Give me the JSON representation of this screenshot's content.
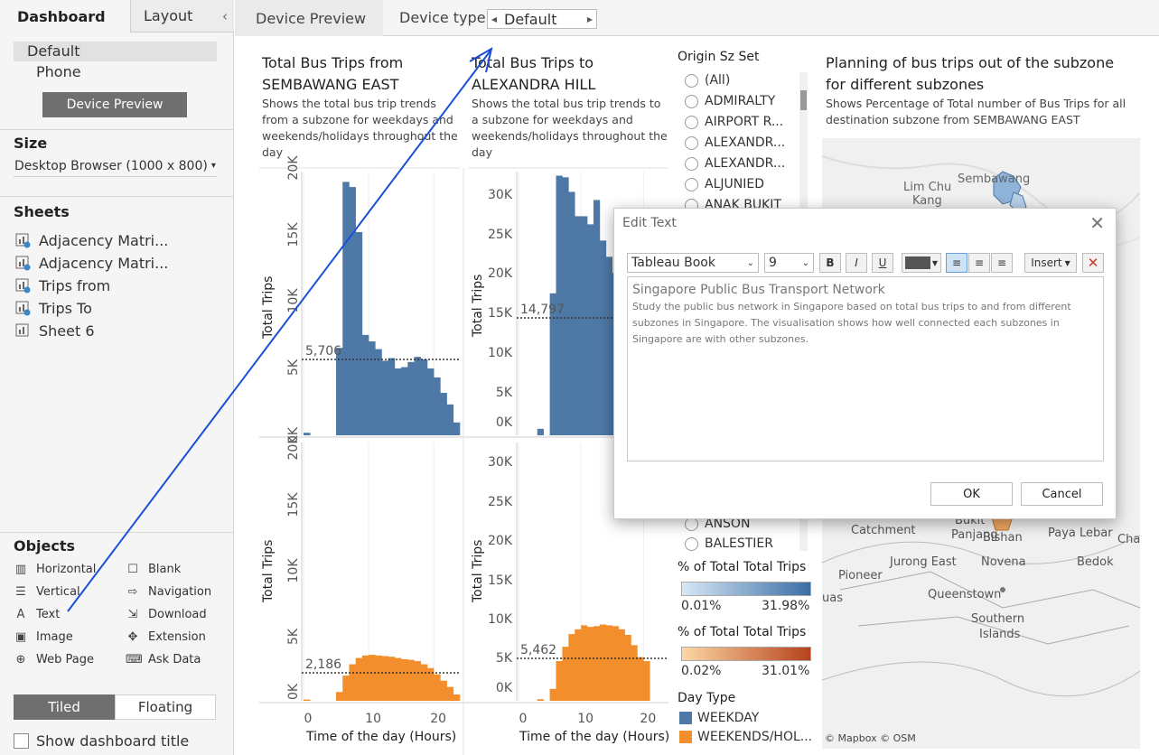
{
  "left_pane": {
    "tabs": [
      "Dashboard",
      "Layout"
    ],
    "collapse_glyph": "‹",
    "device": {
      "items": [
        "Default",
        "Phone"
      ],
      "preview_button": "Device Preview"
    },
    "size": {
      "title": "Size",
      "value": "Desktop Browser (1000 x 800)"
    },
    "sheets": {
      "title": "Sheets",
      "items": [
        "Adjacency Matri...",
        "Adjacency Matri...",
        "Trips from",
        "Trips To",
        "Sheet 6"
      ]
    },
    "objects": {
      "title": "Objects",
      "items": [
        {
          "label": "Horizontal",
          "icon": "horizontal-icon"
        },
        {
          "label": "Blank",
          "icon": "blank-icon"
        },
        {
          "label": "Vertical",
          "icon": "vertical-icon"
        },
        {
          "label": "Navigation",
          "icon": "navigation-icon"
        },
        {
          "label": "Text",
          "icon": "text-icon"
        },
        {
          "label": "Download",
          "icon": "download-icon"
        },
        {
          "label": "Image",
          "icon": "image-icon"
        },
        {
          "label": "Extension",
          "icon": "extension-icon"
        },
        {
          "label": "Web Page",
          "icon": "web-page-icon"
        },
        {
          "label": "Ask Data",
          "icon": "ask-data-icon"
        }
      ],
      "tiled": "Tiled",
      "floating": "Floating"
    },
    "show_title": "Show dashboard title"
  },
  "topbar": {
    "preview_tab": "Device Preview",
    "device_type_label": "Device type",
    "device_type_value": "Default"
  },
  "charts": {
    "left": {
      "title_1": "Total Bus Trips from",
      "title_2": "SEMBAWANG EAST",
      "subtitle_lines": [
        "Shows the total bus trip trends",
        "from a subzone for weekdays and",
        "weekends/holidays throughout the",
        "day"
      ]
    },
    "right": {
      "title_1": "Total Bus Trips to",
      "title_2": "ALEXANDRA HILL",
      "subtitle_lines": [
        "Shows the total bus trip trends to",
        "a subzone for weekdays and",
        "weekends/holidays throughout the",
        "day"
      ]
    },
    "ylabel": "Total Trips",
    "xlabel": "Time of the day (Hours)"
  },
  "chart_data": [
    {
      "type": "bar",
      "title": "Total Bus Trips from SEMBAWANG EAST — WEEKDAY",
      "xlabel": "Time of the day (Hours)",
      "ylabel": "Total Trips",
      "x": [
        0,
        1,
        2,
        3,
        4,
        5,
        6,
        7,
        8,
        9,
        10,
        11,
        12,
        13,
        14,
        15,
        16,
        17,
        18,
        19,
        20,
        21,
        22,
        23
      ],
      "values": [
        200,
        0,
        0,
        0,
        0,
        6800,
        19700,
        19300,
        15800,
        7800,
        7300,
        6700,
        5800,
        6000,
        5200,
        5300,
        5700,
        6100,
        5900,
        5200,
        4500,
        3300,
        2400,
        1000
      ],
      "ylim": [
        0,
        20500
      ],
      "yticks": [
        "0K",
        "5K",
        "10K",
        "15K",
        "20K"
      ],
      "xticks": [
        "0",
        "10",
        "20"
      ],
      "reference_line": "5,706",
      "color": "#4e79a7"
    },
    {
      "type": "bar",
      "title": "Total Bus Trips to ALEXANDRA HILL — WEEKDAY",
      "xlabel": "Time of the day (Hours)",
      "ylabel": "Total Trips",
      "x": [
        0,
        1,
        2,
        3,
        4,
        5,
        6,
        7,
        8,
        9,
        10,
        11,
        12,
        13,
        14,
        15,
        16,
        17,
        18,
        19,
        20
      ],
      "values": [
        0,
        0,
        0,
        800,
        0,
        17500,
        32000,
        31800,
        30000,
        27000,
        27000,
        26000,
        29000,
        24000,
        22000,
        20000,
        18000,
        16000,
        14000,
        10000,
        15000
      ],
      "ylim": [
        0,
        32500
      ],
      "yticks": [
        "0K",
        "5K",
        "10K",
        "15K",
        "20K",
        "25K",
        "30K"
      ],
      "xticks": [
        "0",
        "10",
        "20"
      ],
      "reference_line": "14,797",
      "color": "#4e79a7"
    },
    {
      "type": "bar",
      "title": "Total Bus Trips from SEMBAWANG EAST — WEEKENDS/HOLIDAYS",
      "xlabel": "Time of the day (Hours)",
      "ylabel": "Total Trips",
      "x": [
        0,
        1,
        2,
        3,
        4,
        5,
        6,
        7,
        8,
        9,
        10,
        11,
        12,
        13,
        14,
        15,
        16,
        17,
        18,
        19,
        20,
        21,
        22,
        23
      ],
      "values": [
        100,
        0,
        0,
        0,
        0,
        700,
        2000,
        2900,
        3400,
        3600,
        3650,
        3600,
        3550,
        3500,
        3400,
        3300,
        3250,
        3150,
        2900,
        2600,
        2100,
        1600,
        1100,
        500
      ],
      "ylim": [
        0,
        20500
      ],
      "yticks": [
        "0K",
        "5K",
        "10K",
        "15K",
        "20K"
      ],
      "xticks": [
        "0",
        "10",
        "20"
      ],
      "reference_line": "2,186",
      "color": "#f28e2b"
    },
    {
      "type": "bar",
      "title": "Total Bus Trips to ALEXANDRA HILL — WEEKENDS/HOLIDAYS",
      "xlabel": "Time of the day (Hours)",
      "ylabel": "Total Trips",
      "x": [
        0,
        1,
        2,
        3,
        4,
        5,
        6,
        7,
        8,
        9,
        10,
        11,
        12,
        13,
        14,
        15,
        16,
        17,
        18,
        19,
        20
      ],
      "values": [
        0,
        0,
        0,
        200,
        0,
        1500,
        5000,
        6800,
        8400,
        9000,
        9500,
        9300,
        9400,
        9600,
        9500,
        9400,
        9000,
        8300,
        7000,
        5500,
        5000
      ],
      "ylim": [
        0,
        32500
      ],
      "yticks": [
        "0K",
        "5K",
        "10K",
        "15K",
        "20K",
        "25K",
        "30K"
      ],
      "xticks": [
        "0",
        "10",
        "20"
      ],
      "reference_line": "5,462",
      "color": "#f28e2b"
    }
  ],
  "legend": {
    "origin_title": "Origin Sz Set",
    "origin_items_top": [
      "(All)",
      "ADMIRALTY",
      "AIRPORT R...",
      "ALEXANDR...",
      "ALEXANDR...",
      "ALJUNIED",
      "ANAK BUKIT"
    ],
    "origin_items_bottom": [
      "ANSON",
      "BALESTIER"
    ],
    "pct_title_1": "% of Total Total Trips",
    "pct_min_1": "0.01%",
    "pct_max_1": "31.98%",
    "pct_title_2": "% of Total Total Trips",
    "pct_min_2": "0.02%",
    "pct_max_2": "31.01%",
    "day_type_title": "Day Type",
    "day_types": [
      {
        "label": "WEEKDAY",
        "color": "#4e79a7"
      },
      {
        "label": "WEEKENDS/HOL...",
        "color": "#f28e2b"
      }
    ]
  },
  "map": {
    "title_1": "Planning of bus trips out of the subzone",
    "title_2": "for different subzones",
    "subtitle_1": "Shows Percentage of Total number of  Bus Trips for all",
    "subtitle_2": "destination subzone from SEMBAWANG EAST",
    "labels_top": [
      "Sembawang",
      "Lim Chu",
      "Kang"
    ],
    "labels_bottom": [
      "Catchment",
      "Bukit",
      "Panjang",
      "Bishan",
      "Paya Lebar",
      "Cha",
      "Pioneer",
      "Jurong East",
      "Novena",
      "Bedok",
      "uas",
      "Queenstown",
      "Southern",
      "Islands"
    ],
    "attribution": "© Mapbox © OSM"
  },
  "dialog": {
    "title": "Edit Text",
    "font": "Tableau Book",
    "size": "9",
    "bold": "B",
    "italic": "I",
    "underline": "U",
    "insert": "Insert",
    "text_title": "Singapore Public Bus Transport Network",
    "text_body_lines": [
      "Study the public bus network in Singapore based on total bus trips to and from different",
      "subzones in Singapore. The visualisation shows how well connected each subzones in",
      "Singapore are with other subzones."
    ],
    "ok": "OK",
    "cancel": "Cancel"
  }
}
